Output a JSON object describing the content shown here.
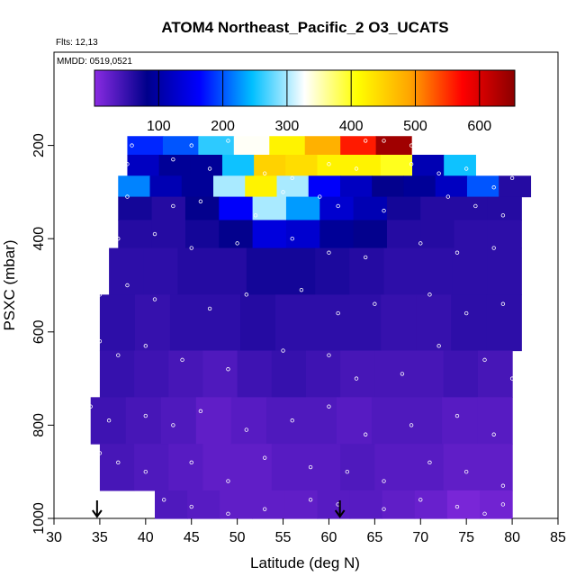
{
  "chart_data": {
    "type": "heatmap",
    "title": "ATOM4 Northeast_Pacific_2 O3_UCATS",
    "flights_note": "Flts: 12,13",
    "dates_note": "MMDD: 0519,0521",
    "xlabel": "Latitude (deg N)",
    "ylabel": "PSXC (mbar)",
    "xlim": [
      30,
      85
    ],
    "ylim": [
      1000,
      0
    ],
    "x_ticks": [
      "30",
      "35",
      "40",
      "45",
      "50",
      "55",
      "60",
      "65",
      "70",
      "75",
      "80",
      "85"
    ],
    "y_ticks": [
      "200",
      "400",
      "600",
      "800",
      "1000"
    ],
    "colorbar": {
      "range": [
        0,
        655
      ],
      "ticks": [
        "100",
        "200",
        "300",
        "400",
        "500",
        "600"
      ],
      "colors": [
        "#8A2BE2",
        "#00008B",
        "#0000FF",
        "#00BFFF",
        "#FFFFFF",
        "#FFFF00",
        "#FFA500",
        "#FF0000",
        "#8B0000"
      ]
    },
    "pressure_bands": [
      {
        "p_top": 180,
        "p_bot": 220,
        "lat_min": 38,
        "lat_max": 69,
        "o3": [
          180,
          200,
          260,
          330,
          420,
          480,
          560,
          640
        ]
      },
      {
        "p_top": 220,
        "p_bot": 265,
        "lat_min": 38,
        "lat_max": 76,
        "o3": [
          120,
          90,
          90,
          250,
          450,
          440,
          420,
          420,
          400,
          110,
          250
        ]
      },
      {
        "p_top": 265,
        "p_bot": 310,
        "lat_min": 37,
        "lat_max": 82,
        "o3": [
          220,
          110,
          90,
          300,
          420,
          300,
          160,
          120,
          80,
          90,
          120,
          200,
          60
        ]
      },
      {
        "p_top": 310,
        "p_bot": 360,
        "lat_min": 37,
        "lat_max": 81,
        "o3": [
          70,
          60,
          80,
          160,
          300,
          230,
          130,
          110,
          70,
          60,
          60,
          60
        ]
      },
      {
        "p_top": 360,
        "p_bot": 420,
        "lat_min": 37,
        "lat_max": 81,
        "o3": [
          60,
          60,
          70,
          80,
          140,
          130,
          90,
          80,
          60,
          60,
          55,
          55
        ]
      },
      {
        "p_top": 420,
        "p_bot": 520,
        "lat_min": 36,
        "lat_max": 81,
        "o3": [
          55,
          55,
          60,
          60,
          70,
          70,
          65,
          60,
          55,
          55,
          55,
          55
        ]
      },
      {
        "p_top": 520,
        "p_bot": 640,
        "lat_min": 35,
        "lat_max": 81,
        "o3": [
          55,
          50,
          55,
          55,
          60,
          55,
          55,
          55,
          50,
          50,
          55,
          55
        ]
      },
      {
        "p_top": 640,
        "p_bot": 740,
        "lat_min": 35,
        "lat_max": 80,
        "o3": [
          50,
          45,
          40,
          35,
          45,
          50,
          45,
          40,
          40,
          40,
          45,
          40
        ]
      },
      {
        "p_top": 740,
        "p_bot": 840,
        "lat_min": 34,
        "lat_max": 80,
        "o3": [
          45,
          40,
          35,
          25,
          30,
          35,
          35,
          30,
          35,
          35,
          30,
          30
        ]
      },
      {
        "p_top": 840,
        "p_bot": 940,
        "lat_min": 35,
        "lat_max": 80,
        "o3": [
          40,
          35,
          30,
          25,
          25,
          30,
          30,
          35,
          30,
          30,
          25,
          25
        ]
      },
      {
        "p_top": 940,
        "p_bot": 1000,
        "lat_min": 41,
        "lat_max": 80,
        "o3": [
          35,
          30,
          25,
          25,
          25,
          30,
          30,
          25,
          20,
          10,
          15
        ]
      }
    ],
    "sample_points": [
      [
        38.5,
        200
      ],
      [
        45,
        200
      ],
      [
        49,
        190
      ],
      [
        64,
        190
      ],
      [
        66,
        190
      ],
      [
        69,
        200
      ],
      [
        38,
        240
      ],
      [
        43,
        230
      ],
      [
        47,
        250
      ],
      [
        53,
        260
      ],
      [
        56,
        270
      ],
      [
        60,
        240
      ],
      [
        63,
        250
      ],
      [
        69,
        240
      ],
      [
        72,
        260
      ],
      [
        75,
        250
      ],
      [
        78,
        290
      ],
      [
        80,
        270
      ],
      [
        36,
        320
      ],
      [
        38,
        310
      ],
      [
        43,
        330
      ],
      [
        46,
        320
      ],
      [
        52,
        350
      ],
      [
        55,
        300
      ],
      [
        59,
        310
      ],
      [
        61,
        330
      ],
      [
        66,
        340
      ],
      [
        73,
        310
      ],
      [
        76,
        330
      ],
      [
        79,
        350
      ],
      [
        35,
        420
      ],
      [
        37,
        400
      ],
      [
        41,
        390
      ],
      [
        45,
        420
      ],
      [
        50,
        410
      ],
      [
        56,
        400
      ],
      [
        60,
        430
      ],
      [
        64,
        440
      ],
      [
        70,
        410
      ],
      [
        74,
        430
      ],
      [
        78,
        420
      ],
      [
        35,
        520
      ],
      [
        38,
        500
      ],
      [
        41,
        530
      ],
      [
        47,
        550
      ],
      [
        51,
        520
      ],
      [
        57,
        510
      ],
      [
        61,
        560
      ],
      [
        65,
        540
      ],
      [
        71,
        520
      ],
      [
        75,
        560
      ],
      [
        79,
        540
      ],
      [
        35,
        620
      ],
      [
        37,
        650
      ],
      [
        40,
        630
      ],
      [
        44,
        660
      ],
      [
        49,
        680
      ],
      [
        55,
        640
      ],
      [
        60,
        650
      ],
      [
        63,
        700
      ],
      [
        68,
        690
      ],
      [
        72,
        630
      ],
      [
        77,
        660
      ],
      [
        80,
        700
      ],
      [
        34,
        760
      ],
      [
        36,
        790
      ],
      [
        40,
        780
      ],
      [
        43,
        800
      ],
      [
        46,
        770
      ],
      [
        51,
        810
      ],
      [
        56,
        790
      ],
      [
        60,
        760
      ],
      [
        64,
        820
      ],
      [
        69,
        800
      ],
      [
        74,
        780
      ],
      [
        78,
        820
      ],
      [
        35,
        860
      ],
      [
        37,
        880
      ],
      [
        40,
        900
      ],
      [
        45,
        880
      ],
      [
        49,
        920
      ],
      [
        53,
        870
      ],
      [
        58,
        890
      ],
      [
        62,
        900
      ],
      [
        66,
        920
      ],
      [
        71,
        880
      ],
      [
        75,
        900
      ],
      [
        79,
        930
      ],
      [
        42,
        960
      ],
      [
        45,
        975
      ],
      [
        49,
        990
      ],
      [
        53,
        980
      ],
      [
        58,
        960
      ],
      [
        61,
        970
      ],
      [
        66,
        980
      ],
      [
        70,
        960
      ],
      [
        74,
        975
      ],
      [
        77,
        990
      ],
      [
        79,
        970
      ]
    ],
    "flight_markers_lat": [
      34.7,
      61.2
    ]
  }
}
